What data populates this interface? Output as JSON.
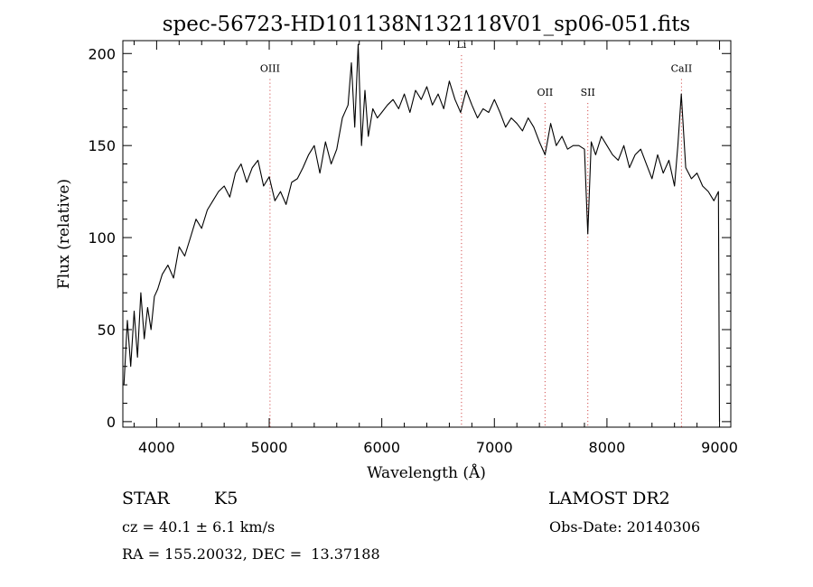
{
  "chart_data": {
    "type": "line",
    "title": "spec-56723-HD101138N132118V01_sp06-051.fits",
    "xlabel": "Wavelength (Å)",
    "ylabel": "Flux (relative)",
    "xlim": [
      3700,
      9100
    ],
    "ylim": [
      -3,
      207
    ],
    "x_ticks": [
      4000,
      5000,
      6000,
      7000,
      8000,
      9000
    ],
    "y_ticks": [
      0,
      50,
      100,
      150,
      200
    ],
    "grid": false,
    "line_color": "#000000",
    "annotations": [
      {
        "label": "OIII",
        "x": 5007,
        "label_y": 190
      },
      {
        "label": "Li",
        "x": 6708,
        "label_y": 203
      },
      {
        "label": "OII",
        "x": 7450,
        "label_y": 177
      },
      {
        "label": "SII",
        "x": 7830,
        "label_y": 177
      },
      {
        "label": "CaII",
        "x": 8662,
        "label_y": 190
      }
    ],
    "annotation_color": "#cc3333",
    "series": [
      {
        "x": [
          3710,
          3740,
          3770,
          3800,
          3830,
          3860,
          3890,
          3920,
          3950,
          3980,
          4010,
          4050,
          4100,
          4150,
          4200,
          4250,
          4300,
          4350,
          4400,
          4450,
          4500,
          4550,
          4600,
          4650,
          4700,
          4750,
          4800,
          4850,
          4900,
          4950,
          5000,
          5050,
          5100,
          5150,
          5200,
          5250,
          5300,
          5350,
          5400,
          5450,
          5500,
          5550,
          5600,
          5650,
          5700,
          5730,
          5760,
          5790,
          5820,
          5850,
          5880,
          5920,
          5960,
          6000,
          6050,
          6100,
          6150,
          6200,
          6250,
          6300,
          6350,
          6400,
          6450,
          6500,
          6550,
          6600,
          6650,
          6700,
          6750,
          6800,
          6850,
          6900,
          6950,
          7000,
          7050,
          7100,
          7150,
          7200,
          7250,
          7300,
          7350,
          7400,
          7450,
          7500,
          7550,
          7600,
          7650,
          7700,
          7750,
          7800,
          7830,
          7860,
          7900,
          7950,
          8000,
          8050,
          8100,
          8150,
          8200,
          8250,
          8300,
          8350,
          8400,
          8450,
          8500,
          8550,
          8600,
          8630,
          8660,
          8700,
          8750,
          8800,
          8850,
          8900,
          8950,
          8990,
          9000
        ],
        "y": [
          20,
          55,
          30,
          60,
          35,
          70,
          45,
          62,
          50,
          68,
          72,
          80,
          85,
          78,
          95,
          90,
          100,
          110,
          105,
          115,
          120,
          125,
          128,
          122,
          135,
          140,
          130,
          138,
          142,
          128,
          133,
          120,
          125,
          118,
          130,
          132,
          138,
          145,
          150,
          135,
          152,
          140,
          148,
          165,
          172,
          195,
          160,
          205,
          150,
          180,
          155,
          170,
          165,
          168,
          172,
          175,
          170,
          178,
          168,
          180,
          175,
          182,
          172,
          178,
          170,
          185,
          175,
          168,
          180,
          172,
          165,
          170,
          168,
          175,
          168,
          160,
          165,
          162,
          158,
          165,
          160,
          152,
          145,
          162,
          150,
          155,
          148,
          150,
          150,
          148,
          102,
          152,
          145,
          155,
          150,
          145,
          142,
          150,
          138,
          145,
          148,
          140,
          132,
          145,
          135,
          142,
          128,
          150,
          178,
          138,
          132,
          135,
          128,
          125,
          120,
          125,
          0
        ]
      }
    ]
  },
  "info": {
    "object_class": "STAR",
    "subclass": "K5",
    "survey": "LAMOST DR2",
    "redshift": "cz = 40.1 ± 6.1 km/s",
    "obs_date": "Obs-Date: 20140306",
    "coords": "RA = 155.20032, DEC =  13.37188"
  }
}
